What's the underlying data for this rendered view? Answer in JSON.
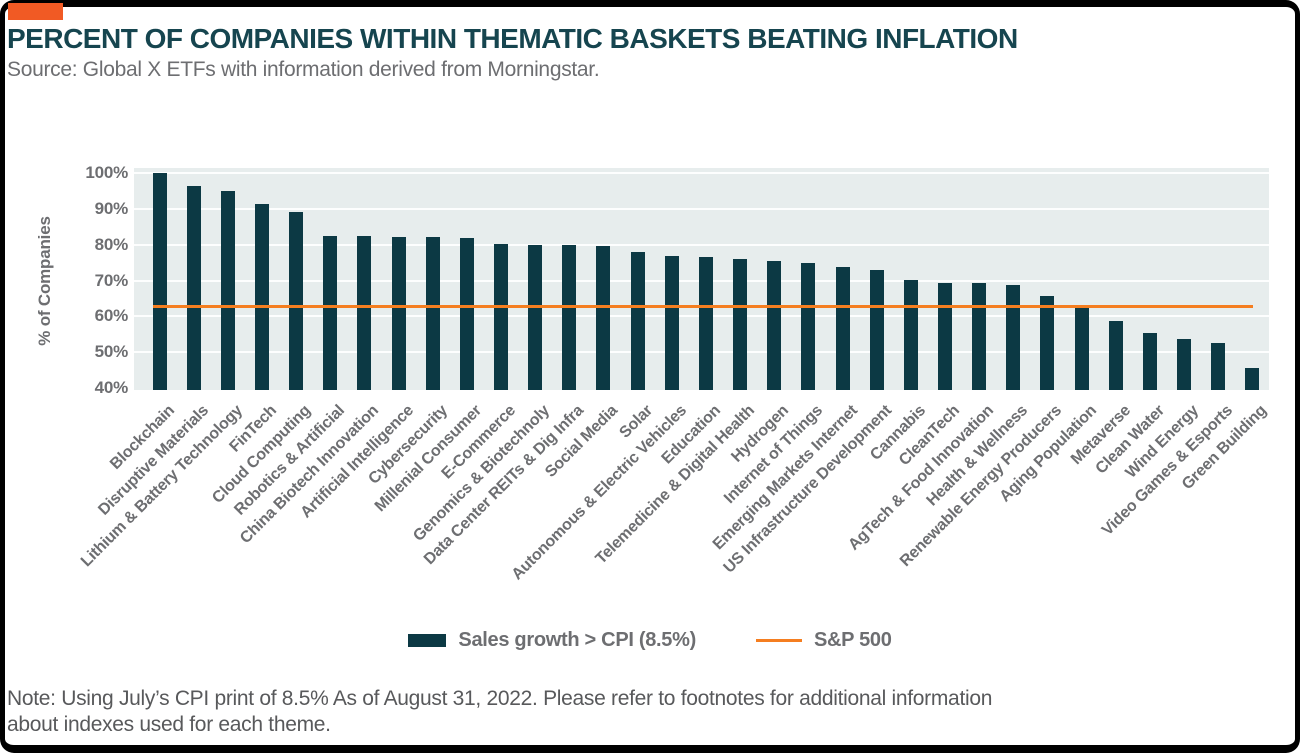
{
  "accent_color": "#F15A24",
  "header": {
    "title": "PERCENT OF COMPANIES WITHIN THEMATIC BASKETS BEATING INFLATION",
    "source": "Source: Global X ETFs with information derived from Morningstar."
  },
  "chart_data": {
    "type": "bar",
    "title": "PERCENT OF COMPANIES WITHIN THEMATIC BASKETS BEATING INFLATION",
    "xlabel": "",
    "ylabel": "% of Companies",
    "ylim": [
      40,
      100
    ],
    "ytick_values": [
      100,
      90,
      80,
      70,
      60,
      50,
      40
    ],
    "ytick_suffix": "%",
    "grid": true,
    "plot_bg": "#E7EDED",
    "legend_position": "bottom-center",
    "categories": [
      "Blockchain",
      "Disruptive Materials",
      "Lithium & Battery Technology",
      "FinTech",
      "Cloud Computing",
      "Robotics & Artificial",
      "China Biotech Innovation",
      "Artificial Intelligence",
      "Cybersecurity",
      "Millenial Consumer",
      "E-Commerce",
      "Genomics & Biotechnoly",
      "Data Center REITs & Dig Infra",
      "Social Media",
      "Solar",
      "Autonomous & Electric Vehicles",
      "Education",
      "Telemedicine & Digital Health",
      "Hydrogen",
      "Internet of Things",
      "Emerging Markets Internet",
      "US Infrastructure Development",
      "Cannabis",
      "CleanTech",
      "AgTech & Food Innovation",
      "Health & Wellness",
      "Renewable Energy Producers",
      "Aging Population",
      "Metaverse",
      "Clean Water",
      "Wind Energy",
      "Video Games & Esports",
      "Green Building"
    ],
    "series": [
      {
        "name": "Sales growth > CPI (8.5%)",
        "type": "bar",
        "color": "#0C3944",
        "values": [
          100,
          96.4,
          94.9,
          91.3,
          89,
          82.5,
          82.3,
          82.2,
          82.1,
          81.8,
          80.1,
          80,
          79.9,
          79.6,
          77.9,
          76.8,
          76.5,
          76.1,
          75.4,
          75,
          73.7,
          72.9,
          70.1,
          69.4,
          69.2,
          68.7,
          65.8,
          62.4,
          58.7,
          55.3,
          53.7,
          52.6,
          45.6
        ]
      },
      {
        "name": "S&P 500",
        "type": "hline",
        "color": "#F57E20",
        "value": 62.8
      }
    ]
  },
  "note": {
    "lines": [
      "Note: Using July’s CPI print of 8.5% As of August 31, 2022. Please refer to footnotes for additional information",
      "about indexes used for each theme."
    ]
  }
}
